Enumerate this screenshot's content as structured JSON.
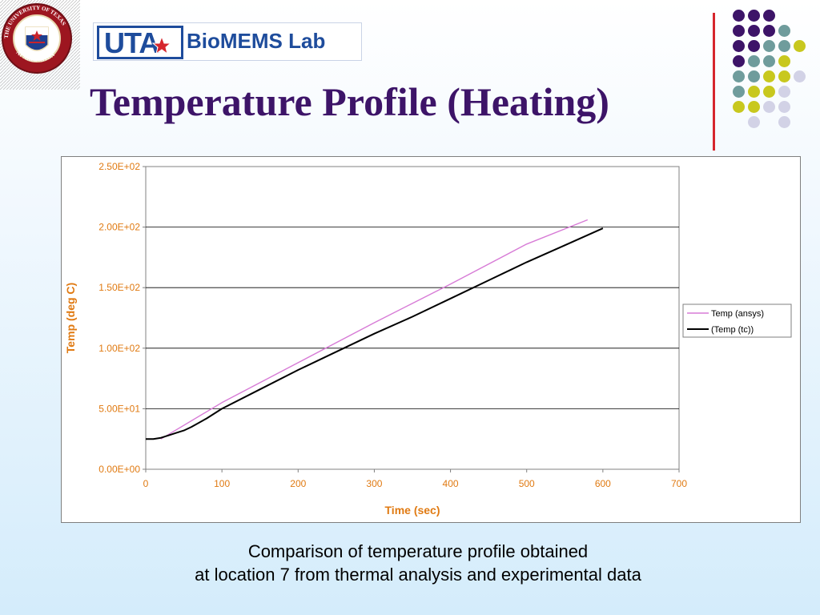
{
  "header": {
    "brand_uta": "UTA",
    "brand_lab": "BioMEMS Lab",
    "seal_top_text": "THE UNIVERSITY OF TEXAS",
    "seal_bottom_text": "AT ARLINGTON",
    "title": "Temperature Profile (Heating)"
  },
  "colors": {
    "title": "#3d1468",
    "accent_rule": "#d6262d",
    "brand_blue": "#1e4c9c",
    "dot_purple": "#3d1468",
    "dot_teal": "#6f9c9c",
    "dot_olive": "#c8c81e",
    "dot_lavender": "#d2d2e6"
  },
  "decor": {
    "dot_grid": [
      [
        "",
        "purple",
        "purple",
        "purple",
        "",
        ""
      ],
      [
        "",
        "purple",
        "purple",
        "purple",
        "teal",
        ""
      ],
      [
        "",
        "purple",
        "purple",
        "teal",
        "teal",
        "olive"
      ],
      [
        "",
        "purple",
        "teal",
        "teal",
        "olive",
        ""
      ],
      [
        "",
        "teal",
        "teal",
        "olive",
        "olive",
        "lavender"
      ],
      [
        "",
        "teal",
        "olive",
        "olive",
        "lavender",
        ""
      ],
      [
        "",
        "olive",
        "olive",
        "lavender",
        "lavender",
        ""
      ],
      [
        "",
        "",
        "lavender",
        "",
        "lavender",
        ""
      ]
    ]
  },
  "chart_data": {
    "type": "line",
    "title": "",
    "xlabel": "Time (sec)",
    "ylabel": "Temp (deg C)",
    "xlim": [
      0,
      700
    ],
    "ylim": [
      0,
      250
    ],
    "x_ticks": [
      "0",
      "100",
      "200",
      "300",
      "400",
      "500",
      "600",
      "700"
    ],
    "y_ticks": [
      "0.00E+00",
      "5.00E+01",
      "1.00E+02",
      "1.50E+02",
      "2.00E+02",
      "2.50E+02"
    ],
    "grid": "horizontal",
    "legend_position": "right",
    "label_color": "#e07a12",
    "series": [
      {
        "name": "Temp (ansys)",
        "color": "#d77bd6",
        "x": [
          20,
          100,
          200,
          300,
          400,
          500,
          580
        ],
        "y": [
          25,
          55,
          88,
          121,
          153,
          186,
          206
        ]
      },
      {
        "name": "(Temp (tc))",
        "color": "#000000",
        "x": [
          0,
          10,
          20,
          30,
          40,
          50,
          60,
          80,
          100,
          150,
          200,
          250,
          300,
          350,
          400,
          450,
          500,
          550,
          600
        ],
        "y": [
          25,
          25,
          26,
          28,
          30,
          32,
          35,
          42,
          50,
          66,
          82,
          97,
          112,
          126,
          141,
          156,
          171,
          185,
          199
        ]
      }
    ]
  },
  "caption": {
    "line1": "Comparison of temperature profile obtained",
    "line2": "at location 7 from thermal analysis and experimental data"
  }
}
